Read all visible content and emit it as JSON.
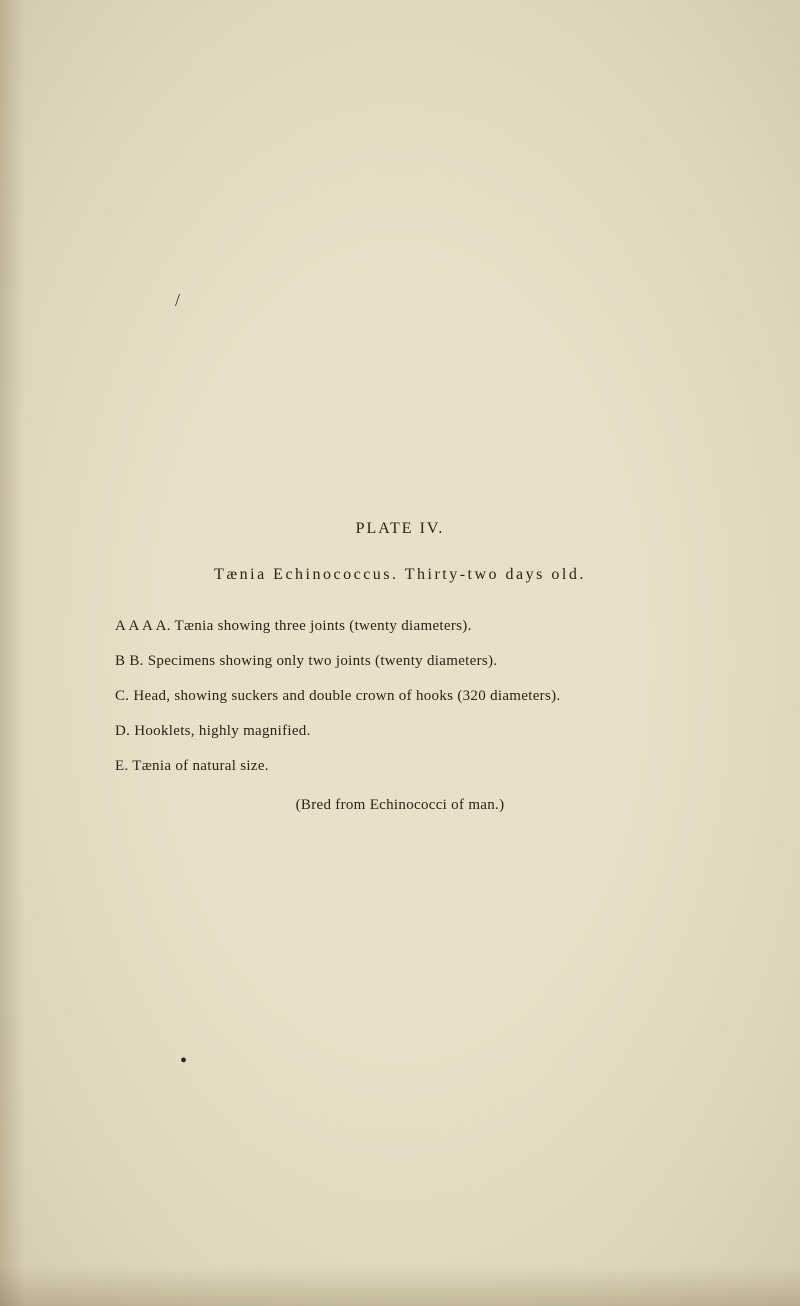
{
  "page": {
    "background_color": "#e8e0c8",
    "text_color": "#2a2418",
    "stray_mark": "/",
    "plate_heading": "PLATE  IV.",
    "title": "Tænia Echinococcus.   Thirty-two days old.",
    "items": [
      "A A A A.  Tænia showing three joints (twenty diameters).",
      "B B.  Specimens showing only two joints (twenty diameters).",
      "C.  Head, showing suckers and double crown of hooks (320 diameters).",
      "D.  Hooklets, highly magnified.",
      "E.  Tænia of natural size."
    ],
    "bred_line": "(Bred from Echinococci of man.)",
    "dot": "•"
  }
}
